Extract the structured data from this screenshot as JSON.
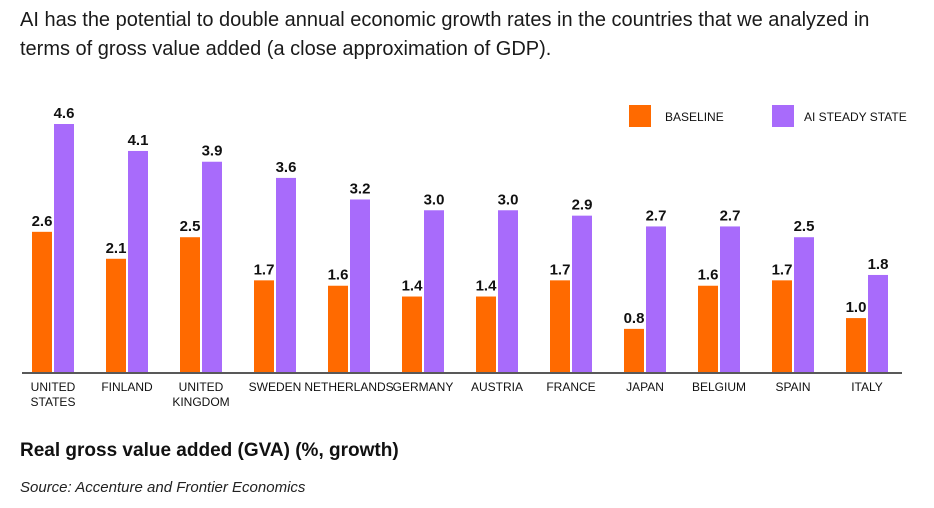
{
  "header": {
    "title": "AI has the potential to double annual economic growth rates in the countries that we analyzed in terms of gross value added (a close approximation of GDP)."
  },
  "footer": {
    "chart_title": "Real gross value added (GVA) (%, growth)",
    "source": "Source: Accenture and Frontier Economics"
  },
  "colors": {
    "baseline": "#ff6a00",
    "ai": "#a86bfb",
    "axis": "#222222"
  },
  "chart_data": {
    "type": "bar",
    "title": "Real gross value added (GVA) (%, growth)",
    "xlabel": "",
    "ylabel": "",
    "ylim": [
      0,
      4.6
    ],
    "grid": false,
    "legend_position": "top-right",
    "categories": [
      [
        "UNITED",
        "STATES"
      ],
      [
        "FINLAND"
      ],
      [
        "UNITED",
        "KINGDOM"
      ],
      [
        "SWEDEN"
      ],
      [
        "NETHERLANDS"
      ],
      [
        "GERMANY"
      ],
      [
        "AUSTRIA"
      ],
      [
        "FRANCE"
      ],
      [
        "JAPAN"
      ],
      [
        "BELGIUM"
      ],
      [
        "SPAIN"
      ],
      [
        "ITALY"
      ]
    ],
    "series": [
      {
        "name": "BASELINE",
        "values": [
          2.6,
          2.1,
          2.5,
          1.7,
          1.6,
          1.4,
          1.4,
          1.7,
          0.8,
          1.6,
          1.7,
          1.0
        ],
        "labels": [
          "2.6",
          "2.1",
          "2.5",
          "1.7",
          "1.6",
          "1.4",
          "1.4",
          "1.7",
          "0.8",
          "1.6",
          "1.7",
          "1.0"
        ]
      },
      {
        "name": "AI STEADY STATE",
        "values": [
          4.6,
          4.1,
          3.9,
          3.6,
          3.2,
          3.0,
          3.0,
          2.9,
          2.7,
          2.7,
          2.5,
          1.8
        ],
        "labels": [
          "4.6",
          "4.1",
          "3.9",
          "3.6",
          "3.2",
          "3.0",
          "3.0",
          "2.9",
          "2.7",
          "2.7",
          "2.5",
          "1.8"
        ]
      }
    ]
  }
}
